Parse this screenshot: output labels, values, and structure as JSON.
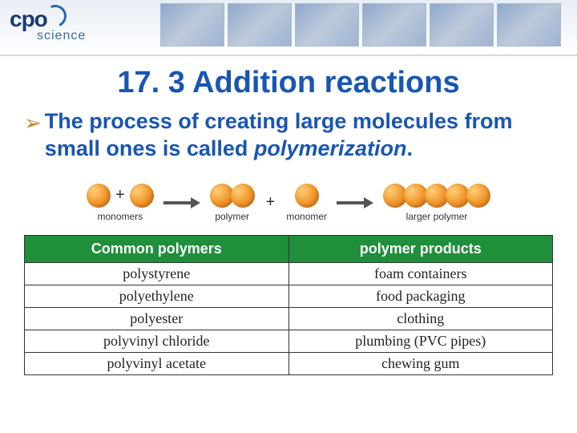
{
  "logo": {
    "main": "cpo",
    "sub": "science"
  },
  "title": "17. 3 Addition reactions",
  "bullet": {
    "prefix": "The process of creating large molecules from small ones is called ",
    "italic": "polymerization",
    "suffix": "."
  },
  "diagram": {
    "labels": {
      "monomers": "monomers",
      "polymer": "polymer",
      "monomer": "monomer",
      "larger_polymer": "larger polymer"
    },
    "ball_color_stops": [
      "#ffcf7a",
      "#f29a2e",
      "#d6731a"
    ]
  },
  "table": {
    "headers": [
      "Common polymers",
      "polymer products"
    ],
    "rows": [
      [
        "polystyrene",
        "foam containers"
      ],
      [
        "polyethylene",
        "food packaging"
      ],
      [
        "polyester",
        "clothing"
      ],
      [
        "polyvinyl chloride",
        "plumbing (PVC pipes)"
      ],
      [
        "polyvinyl acetate",
        "chewing gum"
      ]
    ],
    "header_bg": "#1f8f3b",
    "header_fg": "#ffffff"
  },
  "colors": {
    "title": "#1856b5",
    "bullet_arrow": "#c5862d",
    "background": "#ffffff"
  }
}
